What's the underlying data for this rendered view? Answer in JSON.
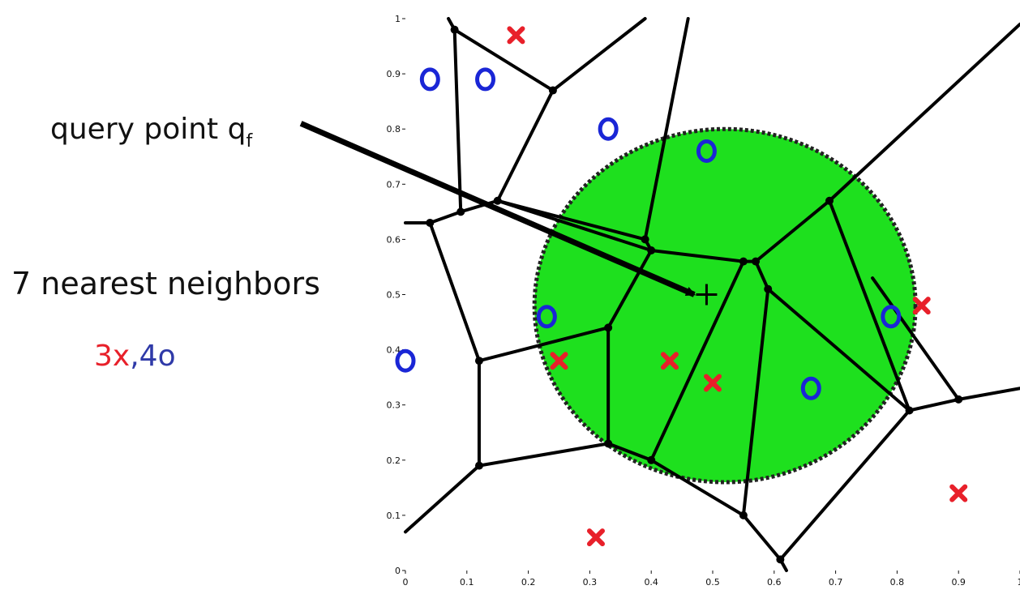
{
  "chart_data": {
    "type": "scatter",
    "title": "",
    "xlabel": "",
    "ylabel": "",
    "xlim": [
      0,
      1
    ],
    "ylim": [
      0,
      1
    ],
    "xticks": [
      "0",
      "0.1",
      "0.2",
      "0.3",
      "0.4",
      "0.5",
      "0.6",
      "0.7",
      "0.8",
      "0.9",
      "1"
    ],
    "yticks": [
      "0",
      "0.1",
      "0.2",
      "0.3",
      "0.4",
      "0.5",
      "0.6",
      "0.7",
      "0.8",
      "0.9",
      "1"
    ],
    "grid": false,
    "series": [
      {
        "marker": "x",
        "color": "#e8202a",
        "points": [
          [
            0.18,
            0.97
          ],
          [
            0.25,
            0.38
          ],
          [
            0.43,
            0.38
          ],
          [
            0.5,
            0.34
          ],
          [
            0.84,
            0.48
          ],
          [
            0.9,
            0.14
          ],
          [
            0.31,
            0.06
          ]
        ]
      },
      {
        "marker": "o",
        "color": "#1a26d6",
        "points": [
          [
            0.04,
            0.89
          ],
          [
            0.13,
            0.89
          ],
          [
            0.33,
            0.8
          ],
          [
            0.49,
            0.76
          ],
          [
            0.23,
            0.46
          ],
          [
            0.0,
            0.38
          ],
          [
            0.79,
            0.46
          ],
          [
            0.66,
            0.33
          ]
        ]
      }
    ],
    "query_point": [
      0.49,
      0.5
    ],
    "neighborhood": {
      "center": [
        0.52,
        0.48
      ],
      "radius_x": 0.31,
      "radius_y": 0.32,
      "fill": "#1ee01e",
      "edge": "#222222"
    },
    "voronoi_vertices": [
      [
        0.08,
        0.98
      ],
      [
        0.24,
        0.87
      ],
      [
        0.09,
        0.65
      ],
      [
        0.15,
        0.67
      ],
      [
        0.04,
        0.63
      ],
      [
        0.39,
        0.6
      ],
      [
        0.4,
        0.58
      ],
      [
        0.55,
        0.56
      ],
      [
        0.57,
        0.56
      ],
      [
        0.69,
        0.67
      ],
      [
        0.59,
        0.51
      ],
      [
        0.33,
        0.44
      ],
      [
        0.12,
        0.38
      ],
      [
        0.12,
        0.19
      ],
      [
        0.33,
        0.23
      ],
      [
        0.4,
        0.2
      ],
      [
        0.55,
        0.1
      ],
      [
        0.61,
        0.02
      ],
      [
        0.82,
        0.29
      ],
      [
        0.9,
        0.31
      ]
    ],
    "voronoi_edges": [
      [
        [
          0.08,
          0.98
        ],
        [
          0.07,
          1.0
        ]
      ],
      [
        [
          0.08,
          0.98
        ],
        [
          0.24,
          0.87
        ]
      ],
      [
        [
          0.24,
          0.87
        ],
        [
          0.39,
          1.0
        ]
      ],
      [
        [
          0.08,
          0.98
        ],
        [
          0.09,
          0.65
        ]
      ],
      [
        [
          0.24,
          0.87
        ],
        [
          0.15,
          0.67
        ]
      ],
      [
        [
          0.09,
          0.65
        ],
        [
          0.15,
          0.67
        ]
      ],
      [
        [
          0.09,
          0.65
        ],
        [
          0.04,
          0.63
        ]
      ],
      [
        [
          0.04,
          0.63
        ],
        [
          0.0,
          0.63
        ]
      ],
      [
        [
          0.04,
          0.63
        ],
        [
          0.12,
          0.38
        ]
      ],
      [
        [
          0.15,
          0.67
        ],
        [
          0.39,
          0.6
        ]
      ],
      [
        [
          0.46,
          1.0
        ],
        [
          0.39,
          0.6
        ]
      ],
      [
        [
          0.39,
          0.6
        ],
        [
          0.4,
          0.58
        ]
      ],
      [
        [
          0.15,
          0.67
        ],
        [
          0.4,
          0.58
        ]
      ],
      [
        [
          0.4,
          0.58
        ],
        [
          0.55,
          0.56
        ]
      ],
      [
        [
          0.55,
          0.56
        ],
        [
          0.57,
          0.56
        ]
      ],
      [
        [
          0.57,
          0.56
        ],
        [
          0.69,
          0.67
        ]
      ],
      [
        [
          0.69,
          0.67
        ],
        [
          1.0,
          0.99
        ]
      ],
      [
        [
          0.69,
          0.67
        ],
        [
          0.82,
          0.29
        ]
      ],
      [
        [
          0.57,
          0.56
        ],
        [
          0.59,
          0.51
        ]
      ],
      [
        [
          0.59,
          0.51
        ],
        [
          0.82,
          0.29
        ]
      ],
      [
        [
          0.82,
          0.29
        ],
        [
          0.9,
          0.31
        ]
      ],
      [
        [
          0.9,
          0.31
        ],
        [
          1.0,
          0.33
        ]
      ],
      [
        [
          0.9,
          0.31
        ],
        [
          0.76,
          0.53
        ]
      ],
      [
        [
          0.82,
          0.29
        ],
        [
          0.61,
          0.02
        ]
      ],
      [
        [
          0.59,
          0.51
        ],
        [
          0.55,
          0.1
        ]
      ],
      [
        [
          0.55,
          0.1
        ],
        [
          0.4,
          0.2
        ]
      ],
      [
        [
          0.55,
          0.1
        ],
        [
          0.61,
          0.02
        ]
      ],
      [
        [
          0.61,
          0.02
        ],
        [
          0.62,
          0.0
        ]
      ],
      [
        [
          0.55,
          0.56
        ],
        [
          0.4,
          0.2
        ]
      ],
      [
        [
          0.4,
          0.58
        ],
        [
          0.33,
          0.44
        ]
      ],
      [
        [
          0.33,
          0.44
        ],
        [
          0.12,
          0.38
        ]
      ],
      [
        [
          0.33,
          0.44
        ],
        [
          0.33,
          0.23
        ]
      ],
      [
        [
          0.33,
          0.23
        ],
        [
          0.4,
          0.2
        ]
      ],
      [
        [
          0.33,
          0.23
        ],
        [
          0.12,
          0.19
        ]
      ],
      [
        [
          0.12,
          0.38
        ],
        [
          0.12,
          0.19
        ]
      ],
      [
        [
          0.12,
          0.19
        ],
        [
          0.0,
          0.07
        ]
      ]
    ],
    "annotations": {
      "query_label": "query point q",
      "query_label_subscript": "f",
      "neighbors_label": "7 nearest neighbors",
      "count_x": "3x",
      "count_separator": ",",
      "count_o": "4o"
    },
    "arrow": {
      "from": [
        -0.17,
        0.81
      ],
      "to": [
        0.47,
        0.5
      ]
    }
  }
}
